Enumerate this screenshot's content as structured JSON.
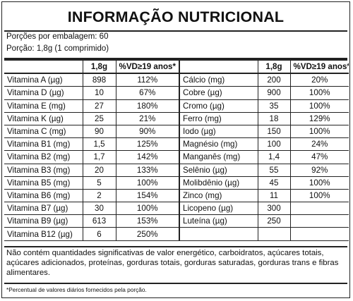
{
  "title": "INFORMAÇÃO NUTRICIONAL",
  "servings_per_package": "Porções por embalagem: 60",
  "serving_size": "Porção: 1,8g (1 comprimido)",
  "columns": {
    "amount": "1,8g",
    "dv": "%VD≥19 anos*"
  },
  "rows": [
    {
      "left": {
        "name": "Vitamina A (µg)",
        "amount": "898",
        "dv": "112%"
      },
      "right": {
        "name": "Cálcio (mg)",
        "amount": "200",
        "dv": "20%"
      }
    },
    {
      "left": {
        "name": "Vitamina D (µg)",
        "amount": "10",
        "dv": "67%"
      },
      "right": {
        "name": "Cobre (µg)",
        "amount": "900",
        "dv": "100%"
      }
    },
    {
      "left": {
        "name": "Vitamina E (mg)",
        "amount": "27",
        "dv": "180%"
      },
      "right": {
        "name": "Cromo (µg)",
        "amount": "35",
        "dv": "100%"
      }
    },
    {
      "left": {
        "name": "Vitamina K (µg)",
        "amount": "25",
        "dv": "21%"
      },
      "right": {
        "name": "Ferro (mg)",
        "amount": "18",
        "dv": "129%"
      }
    },
    {
      "left": {
        "name": "Vitamina C (mg)",
        "amount": "90",
        "dv": "90%"
      },
      "right": {
        "name": "Iodo (µg)",
        "amount": "150",
        "dv": "100%"
      }
    },
    {
      "left": {
        "name": "Vitamina B1 (mg)",
        "amount": "1,5",
        "dv": "125%"
      },
      "right": {
        "name": "Magnésio (mg)",
        "amount": "100",
        "dv": "24%"
      }
    },
    {
      "left": {
        "name": "Vitamina B2 (mg)",
        "amount": "1,7",
        "dv": "142%"
      },
      "right": {
        "name": "Manganês (mg)",
        "amount": "1,4",
        "dv": "47%"
      }
    },
    {
      "left": {
        "name": "Vitamina B3 (mg)",
        "amount": "20",
        "dv": "133%"
      },
      "right": {
        "name": "Selênio (µg)",
        "amount": "55",
        "dv": "92%"
      }
    },
    {
      "left": {
        "name": "Vitamina B5 (mg)",
        "amount": "5",
        "dv": "100%"
      },
      "right": {
        "name": "Molibdênio (µg)",
        "amount": "45",
        "dv": "100%"
      }
    },
    {
      "left": {
        "name": "Vitamina B6 (mg)",
        "amount": "2",
        "dv": "154%"
      },
      "right": {
        "name": "Zinco (mg)",
        "amount": "11",
        "dv": "100%"
      }
    },
    {
      "left": {
        "name": "Vitamina B7 (µg)",
        "amount": "30",
        "dv": "100%"
      },
      "right": {
        "name": "Licopeno (µg)",
        "amount": "300",
        "dv": ""
      }
    },
    {
      "left": {
        "name": "Vitamina B9 (µg)",
        "amount": "613",
        "dv": "153%"
      },
      "right": {
        "name": "Luteína (µg)",
        "amount": "250",
        "dv": ""
      }
    },
    {
      "left": {
        "name": "Vitamina B12 (µg)",
        "amount": "6",
        "dv": "250%"
      },
      "right": {
        "name": "",
        "amount": "",
        "dv": ""
      }
    }
  ],
  "note": "Não contém quantidades significativas de valor energético, carboidratos, açúcares totais, açúcares adicionados, proteínas, gorduras totais, gorduras saturadas, gorduras trans e fibras alimentares.",
  "footnote": "*Percentual de valores diários fornecidos pela porção."
}
